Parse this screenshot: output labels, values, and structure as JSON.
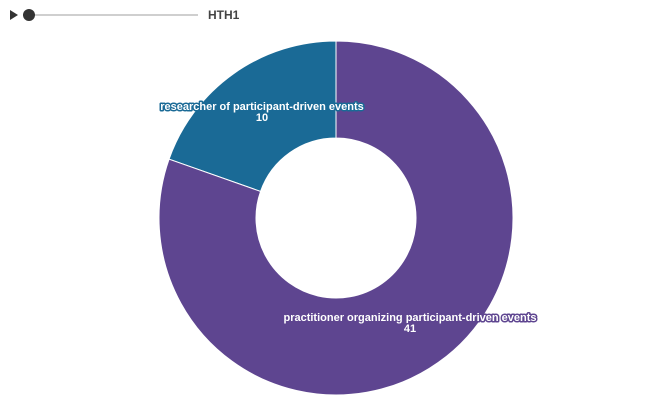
{
  "player": {
    "step_label": "HTH1",
    "play_icon": "play-icon",
    "progress": 0
  },
  "colors": {
    "researcher": "#1a6a96",
    "practitioner": "#5e4590"
  },
  "chart_data": {
    "type": "pie",
    "donut": true,
    "slices": [
      {
        "label": "researcher of participant-driven events",
        "value": 10,
        "color": "#1a6a96"
      },
      {
        "label": "practitioner organizing participant-driven events",
        "value": 41,
        "color": "#5e4590"
      }
    ]
  }
}
